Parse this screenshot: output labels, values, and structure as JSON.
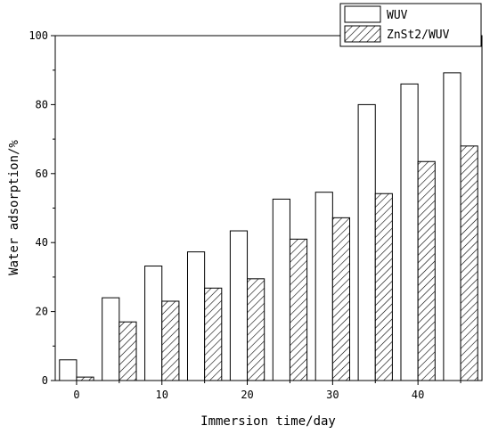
{
  "chart_data": {
    "type": "bar",
    "title": "",
    "xlabel": "Immersion time/day",
    "ylabel": "Water adsorption/%",
    "xlim": [
      -2.5,
      47.5
    ],
    "ylim": [
      0,
      100
    ],
    "x_ticks": [
      0,
      10,
      20,
      30,
      40
    ],
    "y_ticks": [
      0,
      20,
      40,
      60,
      80,
      100
    ],
    "x": [
      0,
      5,
      10,
      15,
      20,
      25,
      30,
      35,
      40,
      45
    ],
    "bar_width_days": 2,
    "legend_position": "top-right",
    "grid": false,
    "series": [
      {
        "name": "WUV",
        "fill": "white",
        "values": [
          6.0,
          24.0,
          33.2,
          37.3,
          43.4,
          52.6,
          54.6,
          80.0,
          86.0,
          89.2
        ]
      },
      {
        "name": "ZnSt2/WUV",
        "fill": "hatch",
        "values": [
          1.0,
          17.0,
          23.0,
          26.8,
          29.5,
          41.0,
          47.2,
          54.2,
          63.5,
          68.0
        ]
      }
    ]
  }
}
